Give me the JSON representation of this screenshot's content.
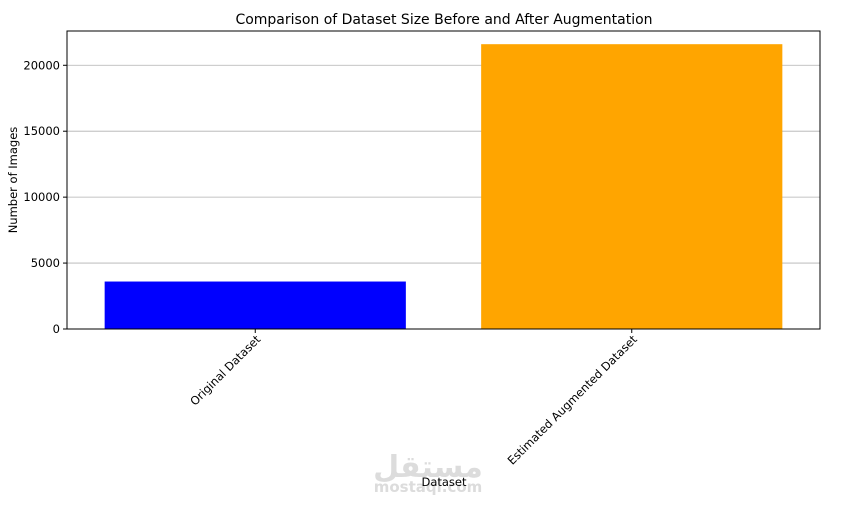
{
  "chart_data": {
    "type": "bar",
    "title": "Comparison of Dataset Size Before and After Augmentation",
    "xlabel": "Dataset",
    "ylabel": "Number of Images",
    "categories": [
      "Original Dataset",
      "Estimated Augmented Dataset"
    ],
    "values": [
      3600,
      21600
    ],
    "colors": [
      "#0000ff",
      "#ffa500"
    ],
    "ylim": [
      0,
      22600
    ],
    "yticks": [
      0,
      5000,
      10000,
      15000,
      20000
    ],
    "grid": "y",
    "legend": "none"
  },
  "watermark": {
    "arabic": "مستقل",
    "latin": "mostaql.com"
  }
}
